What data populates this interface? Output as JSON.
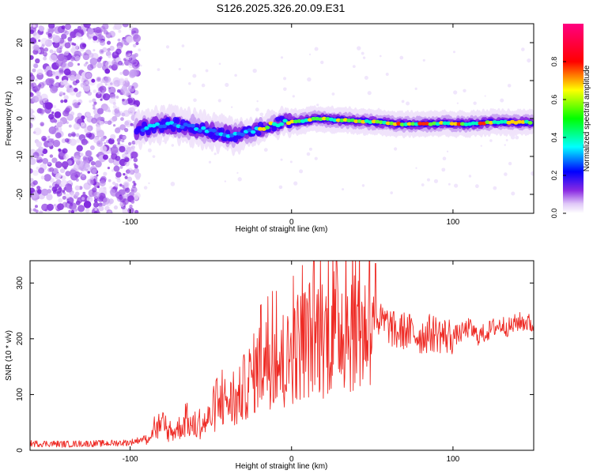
{
  "figure": {
    "title": "S126.2025.326.20.09.E31"
  },
  "chart_data": [
    {
      "type": "heatmap",
      "title": "S126.2025.326.20.09.E31",
      "xlabel": "Height of straight line (km)",
      "ylabel": "Frequency (Hz)",
      "xlim": [
        -162,
        150
      ],
      "ylim": [
        -25,
        25
      ],
      "xticks": [
        -100,
        0,
        100
      ],
      "yticks": [
        -20,
        -10,
        0,
        10,
        20
      ],
      "colorbar": {
        "label": "Normalized spectral amplitude",
        "range": [
          0.0,
          1.0
        ],
        "ticks": [
          0.0,
          0.2,
          0.4,
          0.6,
          0.8
        ],
        "colormap": "rainbow (white-violet-blue-cyan-green-yellow-red-magenta)"
      },
      "ridge": {
        "description": "Signal ridge frequency vs height",
        "x": [
          -95,
          -85,
          -75,
          -65,
          -55,
          -45,
          -35,
          -25,
          -15,
          -5,
          5,
          15,
          25,
          35,
          45,
          55,
          65,
          75,
          85,
          95,
          105,
          115,
          125,
          135,
          145
        ],
        "y": [
          -3,
          -2,
          -1.5,
          -2,
          -3,
          -4,
          -4.5,
          -3.5,
          -2,
          -1,
          -0.8,
          0,
          -0.3,
          -0.5,
          -0.8,
          -1,
          -1.5,
          -1.5,
          -1.5,
          -1.2,
          -1.5,
          -1.3,
          -1,
          -1,
          -1
        ]
      },
      "noise_region": {
        "description": "Scattered broadband noise",
        "x_range": [
          -162,
          -95
        ],
        "freq_range": [
          -25,
          25
        ]
      }
    },
    {
      "type": "line",
      "xlabel": "Height of straight line (km)",
      "ylabel": "SNR (10 * v/v)",
      "xlim": [
        -162,
        150
      ],
      "ylim": [
        0,
        340
      ],
      "xticks": [
        -100,
        0,
        100
      ],
      "yticks": [
        0,
        100,
        200,
        300
      ],
      "color": "#ee2a24",
      "series": [
        {
          "name": "SNR",
          "x": [
            -162,
            -150,
            -140,
            -130,
            -120,
            -110,
            -100,
            -95,
            -90,
            -85,
            -80,
            -75,
            -70,
            -65,
            -60,
            -55,
            -50,
            -45,
            -40,
            -35,
            -30,
            -25,
            -20,
            -15,
            -10,
            -5,
            0,
            5,
            10,
            15,
            20,
            25,
            30,
            35,
            40,
            45,
            50,
            55,
            60,
            65,
            70,
            75,
            80,
            85,
            90,
            95,
            100,
            105,
            110,
            115,
            120,
            125,
            130,
            135,
            140,
            145,
            150
          ],
          "y": [
            12,
            12,
            11,
            12,
            12,
            13,
            14,
            18,
            22,
            35,
            40,
            30,
            40,
            50,
            40,
            45,
            60,
            80,
            90,
            80,
            110,
            130,
            150,
            160,
            170,
            140,
            180,
            190,
            200,
            210,
            205,
            215,
            230,
            220,
            230,
            210,
            250,
            230,
            225,
            210,
            215,
            210,
            205,
            210,
            210,
            205,
            205,
            210,
            220,
            205,
            210,
            220,
            225,
            220,
            230,
            230,
            225
          ],
          "envelope_description": "Dense noisy trace; peak near x=52 at ~330"
        }
      ]
    }
  ]
}
